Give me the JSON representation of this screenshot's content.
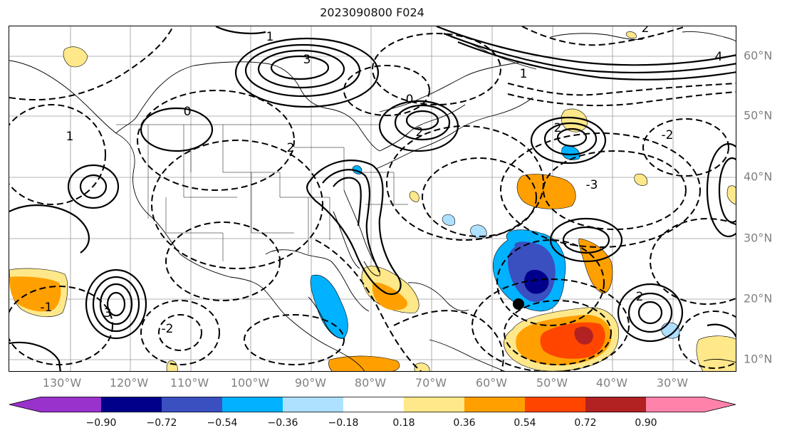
{
  "title": "2023090800 F024",
  "map": {
    "lon_labels": [
      "130°W",
      "120°W",
      "110°W",
      "100°W",
      "90°W",
      "80°W",
      "70°W",
      "60°W",
      "50°W",
      "40°W",
      "30°W"
    ],
    "lat_labels": [
      "60°N",
      "50°N",
      "40°N",
      "30°N",
      "20°N",
      "10°N"
    ],
    "contour_labels": [
      "3",
      "1",
      "0",
      "2",
      "3",
      "2",
      "1",
      "-2",
      "1",
      "2",
      "0",
      "2",
      "-2",
      "-3",
      "4",
      "-1",
      "2"
    ],
    "colors": {
      "neg_090": "#9932cc",
      "neg_072": "#00008b",
      "neg_054": "#3a4fc0",
      "neg_036": "#00b2ff",
      "neg_018": "#aee0ff",
      "zero": "#ffffff",
      "pos_018": "#ffe88a",
      "pos_036": "#ffa000",
      "pos_054": "#ff4500",
      "pos_072": "#b22222",
      "pos_090": "#ff82aa"
    }
  },
  "colorbar": {
    "ticks": [
      "−0.90",
      "−0.72",
      "−0.54",
      "−0.36",
      "−0.18",
      "0.18",
      "0.36",
      "0.54",
      "0.72",
      "0.90"
    ]
  }
}
